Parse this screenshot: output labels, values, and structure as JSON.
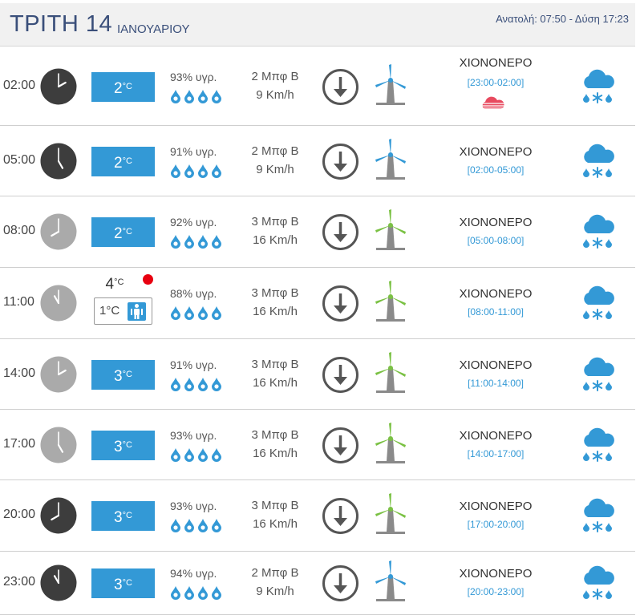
{
  "header": {
    "day": "ΤΡΙΤΗ 14",
    "month": "ΙΑΝΟΥΑΡΙΟΥ",
    "sun": "Ανατολή: 07:50  - Δύση 17:23"
  },
  "colors": {
    "accent_blue": "#3399d6",
    "clock_dark": "#3d3d3d",
    "clock_light": "#aaaaaa",
    "turbine_blue": "#3399d6",
    "turbine_green": "#7ac143",
    "alert_red": "#e8000f",
    "header_text": "#3a4f7a"
  },
  "rows": [
    {
      "time": "02:00",
      "clock": "dark",
      "clock_hour": 2,
      "temp": "2",
      "temp_unit": "°C",
      "humidity": "93% υγρ.",
      "wind_bf": "2 Μπφ Β",
      "wind_kmh": "9 Km/h",
      "turbine": "blue",
      "condition": "ΧΙΟΝΟΝΕΡΟ",
      "range": "[23:00-02:00]",
      "extra_icon": "red-cloud-icon"
    },
    {
      "time": "05:00",
      "clock": "dark",
      "clock_hour": 5,
      "temp": "2",
      "temp_unit": "°C",
      "humidity": "91% υγρ.",
      "wind_bf": "2 Μπφ Β",
      "wind_kmh": "9 Km/h",
      "turbine": "blue",
      "condition": "ΧΙΟΝΟΝΕΡΟ",
      "range": "[02:00-05:00]"
    },
    {
      "time": "08:00",
      "clock": "light",
      "clock_hour": 8,
      "temp": "2",
      "temp_unit": "°C",
      "humidity": "92% υγρ.",
      "wind_bf": "3 Μπφ Β",
      "wind_kmh": "16 Km/h",
      "turbine": "green",
      "condition": "ΧΙΟΝΟΝΕΡΟ",
      "range": "[05:00-08:00]"
    },
    {
      "time": "11:00",
      "clock": "light",
      "clock_hour": 11,
      "temp": "4",
      "temp_unit": "°C",
      "feels_like": "1°C",
      "humidity": "88% υγρ.",
      "wind_bf": "3 Μπφ Β",
      "wind_kmh": "16 Km/h",
      "turbine": "green",
      "condition": "ΧΙΟΝΟΝΕΡΟ",
      "range": "[08:00-11:00]"
    },
    {
      "time": "14:00",
      "clock": "light",
      "clock_hour": 14,
      "temp": "3",
      "temp_unit": "°C",
      "humidity": "91% υγρ.",
      "wind_bf": "3 Μπφ Β",
      "wind_kmh": "16 Km/h",
      "turbine": "green",
      "condition": "ΧΙΟΝΟΝΕΡΟ",
      "range": "[11:00-14:00]"
    },
    {
      "time": "17:00",
      "clock": "light",
      "clock_hour": 17,
      "temp": "3",
      "temp_unit": "°C",
      "humidity": "93% υγρ.",
      "wind_bf": "3 Μπφ Β",
      "wind_kmh": "16 Km/h",
      "turbine": "green",
      "condition": "ΧΙΟΝΟΝΕΡΟ",
      "range": "[14:00-17:00]"
    },
    {
      "time": "20:00",
      "clock": "dark",
      "clock_hour": 20,
      "temp": "3",
      "temp_unit": "°C",
      "humidity": "93% υγρ.",
      "wind_bf": "3 Μπφ Β",
      "wind_kmh": "16 Km/h",
      "turbine": "green",
      "condition": "ΧΙΟΝΟΝΕΡΟ",
      "range": "[17:00-20:00]"
    },
    {
      "time": "23:00",
      "clock": "dark",
      "clock_hour": 23,
      "temp": "3",
      "temp_unit": "°C",
      "humidity": "94% υγρ.",
      "wind_bf": "2 Μπφ Β",
      "wind_kmh": "9 Km/h",
      "turbine": "blue",
      "condition": "ΧΙΟΝΟΝΕΡΟ",
      "range": "[20:00-23:00]"
    }
  ]
}
